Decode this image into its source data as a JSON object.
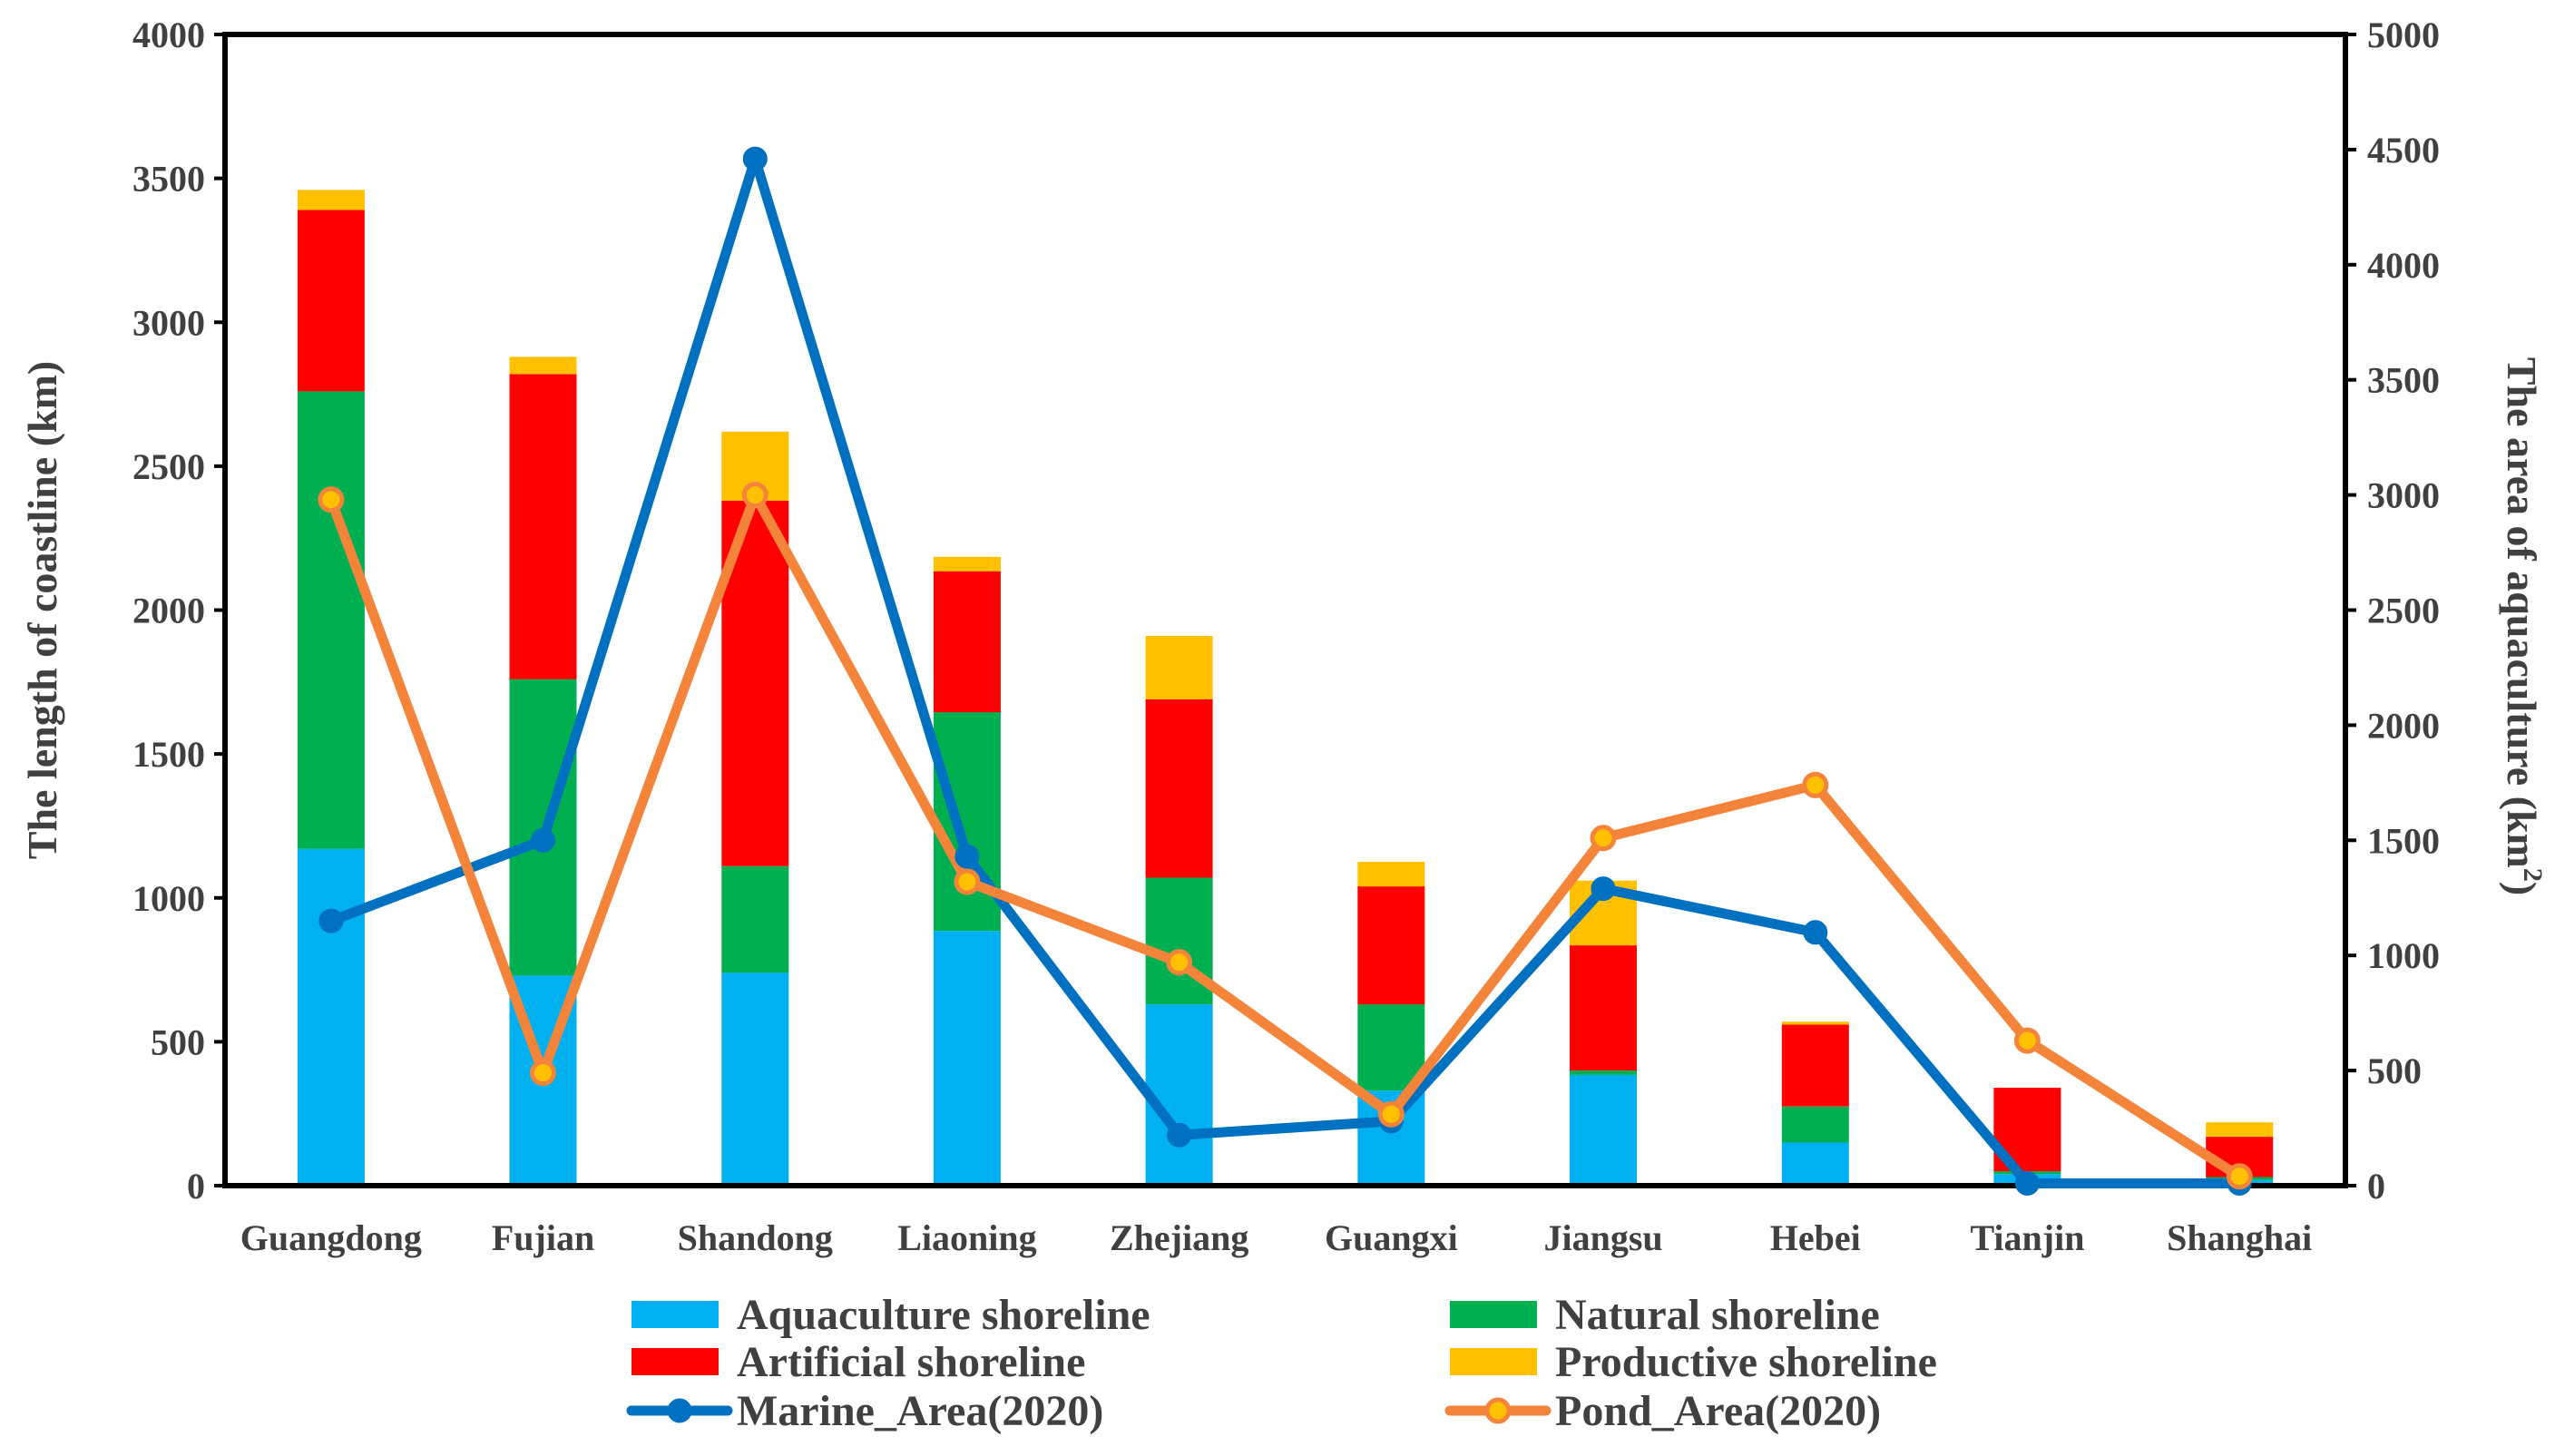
{
  "chart_data": {
    "type": "bar",
    "subtype": "stacked-bar-with-line-overlay",
    "categories": [
      "Guangdong",
      "Fujian",
      "Shandong",
      "Liaoning",
      "Zhejiang",
      "Guangxi",
      "Jiangsu",
      "Hebei",
      "Tianjin",
      "Shanghai"
    ],
    "ylabel_left": "The length of coastline (km)",
    "ylabel_right_main": "The area of aquaculture (km",
    "ylabel_right_sup": "2",
    "ylabel_right_close": ")",
    "ylim_left": [
      0,
      4000
    ],
    "ylim_right": [
      0,
      5000
    ],
    "yticks_left": [
      0,
      500,
      1000,
      1500,
      2000,
      2500,
      3000,
      3500,
      4000
    ],
    "yticks_right": [
      0,
      500,
      1000,
      1500,
      2000,
      2500,
      3000,
      3500,
      4000,
      4500,
      5000
    ],
    "grid": false,
    "legend_position": "bottom",
    "bar_series": [
      {
        "name": "Aquaculture shoreline",
        "color": "#00B0F0",
        "values": [
          1170,
          730,
          740,
          885,
          630,
          330,
          385,
          150,
          40,
          20
        ]
      },
      {
        "name": "Natural shoreline",
        "color": "#00B050",
        "values": [
          1590,
          1030,
          370,
          760,
          440,
          300,
          15,
          125,
          10,
          10
        ]
      },
      {
        "name": "Artificial shoreline",
        "color": "#FF0000",
        "values": [
          630,
          1060,
          1270,
          490,
          620,
          410,
          435,
          285,
          290,
          140
        ]
      },
      {
        "name": "Productive shoreline",
        "color": "#FFC000",
        "values": [
          70,
          60,
          240,
          50,
          220,
          85,
          225,
          10,
          0,
          50
        ]
      }
    ],
    "line_series": [
      {
        "name": "Marine_Area(2020)",
        "color": "#0070C0",
        "axis": "right",
        "values": [
          1150,
          1500,
          4460,
          1430,
          220,
          280,
          1290,
          1100,
          10,
          10
        ]
      },
      {
        "name": "Pond_Area(2020)",
        "color": "#F4843A",
        "axis": "right",
        "values": [
          2980,
          490,
          3000,
          1320,
          970,
          310,
          1510,
          1740,
          630,
          40
        ]
      }
    ]
  }
}
